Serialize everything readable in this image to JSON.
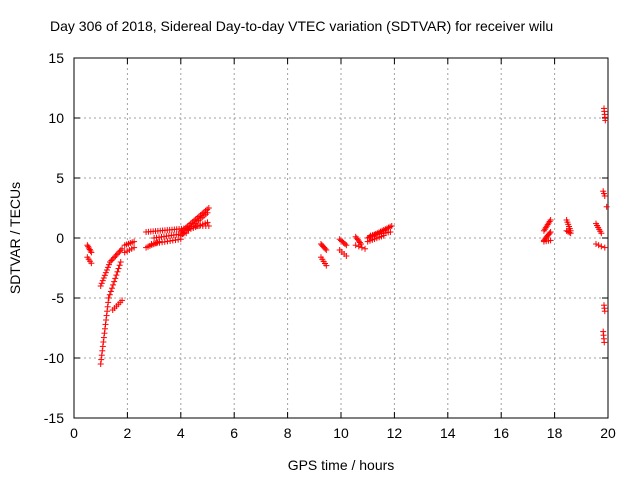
{
  "chart_data": {
    "type": "scatter",
    "title": "Day 306 of 2018, Sidereal Day-to-day VTEC variation (SDTVAR) for receiver wilu",
    "xlabel": "GPS time / hours",
    "ylabel": "SDTVAR / TECUs",
    "xlim": [
      0,
      20
    ],
    "ylim": [
      -15,
      15
    ],
    "x_ticks": [
      0,
      2,
      4,
      6,
      8,
      10,
      12,
      14,
      16,
      18,
      20
    ],
    "y_ticks": [
      -15,
      -10,
      -5,
      0,
      5,
      10,
      15
    ],
    "grid": true,
    "marker": "+",
    "color": "#ff0000",
    "segments": [
      {
        "x0": 0.5,
        "x1": 0.65,
        "y0": -0.6,
        "y1": -1.2,
        "n": 6
      },
      {
        "x0": 0.5,
        "x1": 0.65,
        "y0": -1.6,
        "y1": -2.1,
        "n": 4
      },
      {
        "x0": 1.0,
        "x1": 1.35,
        "y0": -4.0,
        "y1": -2.0,
        "n": 10
      },
      {
        "x0": 1.35,
        "x1": 1.8,
        "y0": -2.0,
        "y1": -0.9,
        "n": 10
      },
      {
        "x0": 1.0,
        "x1": 1.3,
        "y0": -10.5,
        "y1": -5.0,
        "n": 16
      },
      {
        "x0": 1.3,
        "x1": 1.75,
        "y0": -5.0,
        "y1": -2.0,
        "n": 12
      },
      {
        "x0": 1.45,
        "x1": 1.8,
        "y0": -6.0,
        "y1": -5.2,
        "n": 6
      },
      {
        "x0": 1.9,
        "x1": 2.25,
        "y0": -0.6,
        "y1": -0.3,
        "n": 6
      },
      {
        "x0": 1.9,
        "x1": 2.25,
        "y0": -1.2,
        "y1": -0.8,
        "n": 5
      },
      {
        "x0": 2.7,
        "x1": 3.2,
        "y0": -0.8,
        "y1": -0.3,
        "n": 8
      },
      {
        "x0": 2.7,
        "x1": 4.2,
        "y0": 0.5,
        "y1": 0.8,
        "n": 18
      },
      {
        "x0": 3.0,
        "x1": 4.2,
        "y0": 0.0,
        "y1": 0.4,
        "n": 14
      },
      {
        "x0": 2.9,
        "x1": 4.0,
        "y0": -0.5,
        "y1": -0.1,
        "n": 12
      },
      {
        "x0": 4.0,
        "x1": 5.05,
        "y0": 0.5,
        "y1": 2.5,
        "n": 18
      },
      {
        "x0": 4.0,
        "x1": 5.0,
        "y0": 0.2,
        "y1": 2.1,
        "n": 16
      },
      {
        "x0": 4.2,
        "x1": 5.0,
        "y0": 0.6,
        "y1": 1.3,
        "n": 10
      },
      {
        "x0": 4.6,
        "x1": 5.05,
        "y0": 1.0,
        "y1": 1.0,
        "n": 5
      },
      {
        "x0": 9.25,
        "x1": 9.45,
        "y0": -0.5,
        "y1": -1.0,
        "n": 6
      },
      {
        "x0": 9.25,
        "x1": 9.45,
        "y0": -1.6,
        "y1": -2.3,
        "n": 5
      },
      {
        "x0": 9.95,
        "x1": 10.2,
        "y0": -0.1,
        "y1": -0.6,
        "n": 6
      },
      {
        "x0": 9.95,
        "x1": 10.2,
        "y0": -1.0,
        "y1": -1.5,
        "n": 4
      },
      {
        "x0": 10.55,
        "x1": 10.75,
        "y0": 0.1,
        "y1": -0.5,
        "n": 6
      },
      {
        "x0": 10.55,
        "x1": 10.9,
        "y0": -0.6,
        "y1": -0.9,
        "n": 4
      },
      {
        "x0": 11.0,
        "x1": 11.9,
        "y0": 0.0,
        "y1": 1.0,
        "n": 16
      },
      {
        "x0": 11.1,
        "x1": 11.85,
        "y0": 0.2,
        "y1": 0.5,
        "n": 10
      },
      {
        "x0": 11.0,
        "x1": 11.6,
        "y0": -0.3,
        "y1": 0.2,
        "n": 8
      },
      {
        "x0": 17.6,
        "x1": 17.85,
        "y0": 0.6,
        "y1": 1.5,
        "n": 8
      },
      {
        "x0": 17.6,
        "x1": 17.85,
        "y0": -0.2,
        "y1": 0.5,
        "n": 8
      },
      {
        "x0": 17.6,
        "x1": 17.85,
        "y0": -0.3,
        "y1": -0.2,
        "n": 4
      },
      {
        "x0": 18.45,
        "x1": 18.6,
        "y0": 1.5,
        "y1": 0.6,
        "n": 6
      },
      {
        "x0": 18.45,
        "x1": 18.6,
        "y0": 0.6,
        "y1": 0.4,
        "n": 4
      },
      {
        "x0": 19.55,
        "x1": 19.75,
        "y0": 1.2,
        "y1": 0.4,
        "n": 6
      },
      {
        "x0": 19.55,
        "x1": 19.75,
        "y0": -0.5,
        "y1": -0.7,
        "n": 3
      },
      {
        "x0": 19.85,
        "x1": 19.9,
        "y0": 10.8,
        "y1": 9.8,
        "n": 5
      },
      {
        "x0": 19.82,
        "x1": 19.88,
        "y0": 3.9,
        "y1": 3.5,
        "n": 3
      },
      {
        "x0": 19.95,
        "x1": 19.95,
        "y0": 2.6,
        "y1": 2.6,
        "n": 1
      },
      {
        "x0": 19.85,
        "x1": 19.88,
        "y0": -5.6,
        "y1": -6.1,
        "n": 3
      },
      {
        "x0": 19.82,
        "x1": 19.86,
        "y0": -7.8,
        "y1": -8.7,
        "n": 4
      },
      {
        "x0": 19.88,
        "x1": 19.9,
        "y0": -0.8,
        "y1": -0.8,
        "n": 1
      }
    ]
  }
}
